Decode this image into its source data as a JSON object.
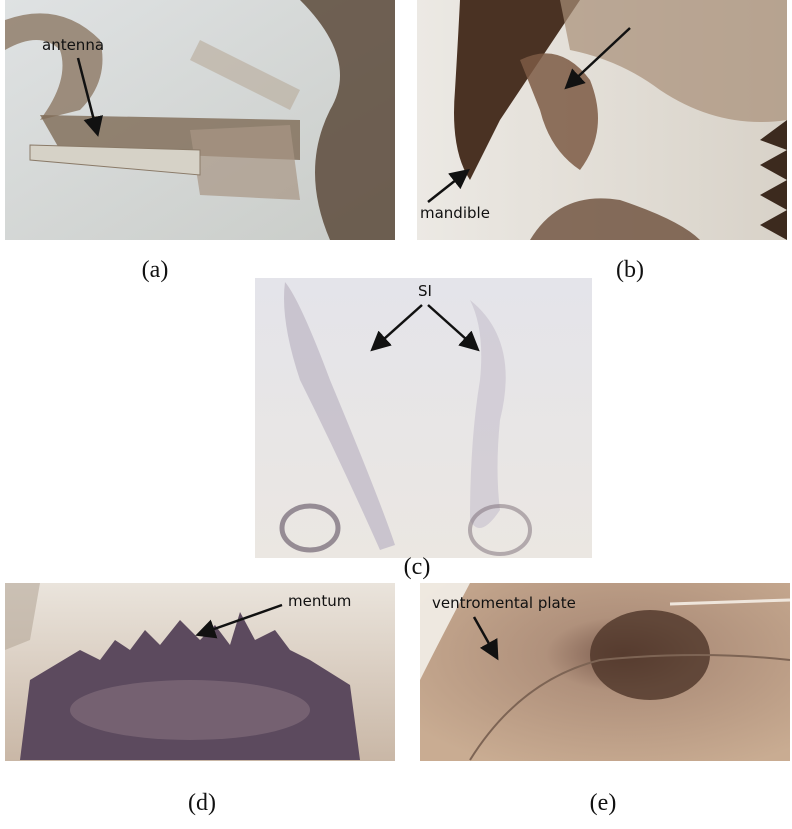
{
  "panels": [
    {
      "label": "(a)",
      "annotations": [
        "antenna"
      ]
    },
    {
      "label": "(b)",
      "annotations": [
        "mandible"
      ]
    },
    {
      "label": "(c)",
      "annotations": [
        "SI"
      ]
    },
    {
      "label": "(d)",
      "annotations": [
        "mentum"
      ]
    },
    {
      "label": "(e)",
      "annotations": [
        "ventromental plate"
      ]
    }
  ]
}
